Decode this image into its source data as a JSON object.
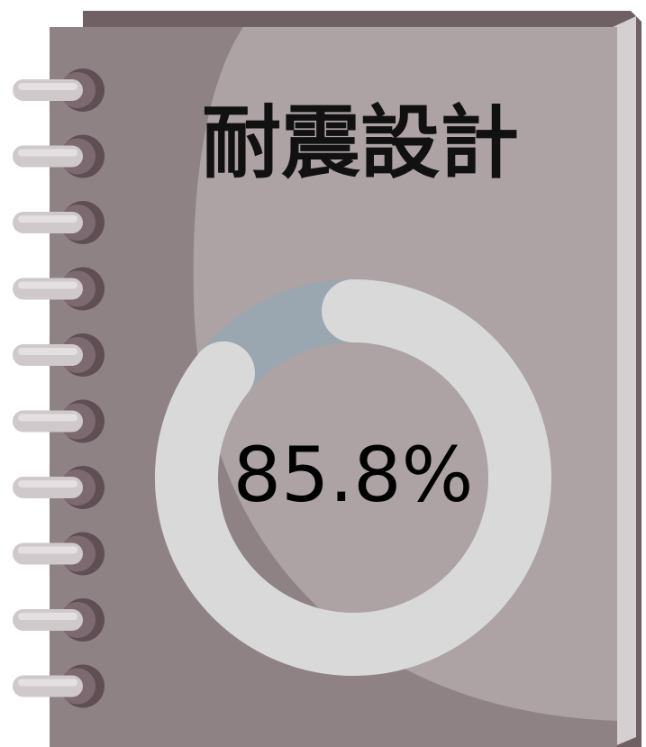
{
  "chart_data": {
    "type": "progress",
    "title": "耐震設計",
    "values": [
      85.8
    ],
    "value_labels": [
      "85.8%"
    ],
    "color": "#d9d9d9",
    "track_color": "#9aa6b0"
  }
}
